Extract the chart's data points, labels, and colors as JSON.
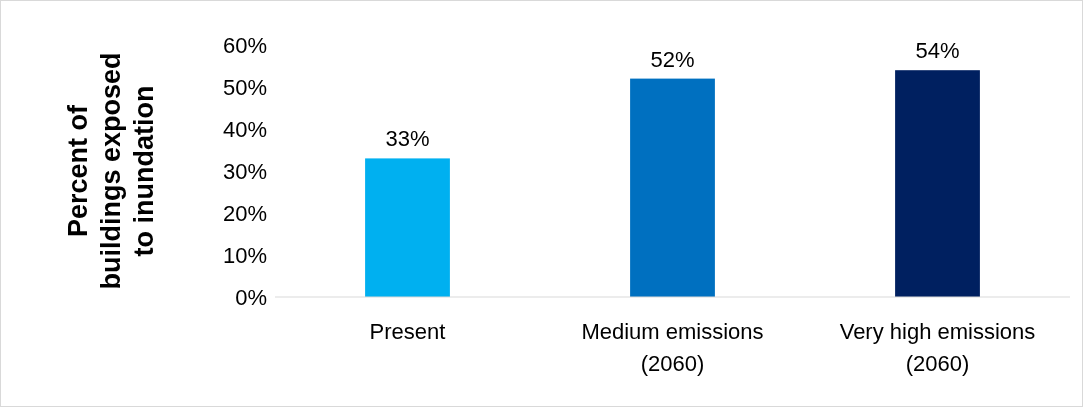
{
  "chart_data": {
    "type": "bar",
    "ylabel": "Percent of buildings exposed to inundation",
    "categories": [
      "Present",
      "Medium emissions (2060)",
      "Very high emissions (2060)"
    ],
    "values": [
      33,
      52,
      54
    ],
    "colors": [
      "#00b0f0",
      "#0070c0",
      "#002060"
    ],
    "value_labels": [
      "33%",
      "52%",
      "54%"
    ],
    "ylim": [
      0,
      60
    ],
    "yticks": [
      {
        "value": 0,
        "label": "0%"
      },
      {
        "value": 10,
        "label": "10%"
      },
      {
        "value": 20,
        "label": "20%"
      },
      {
        "value": 30,
        "label": "30%"
      },
      {
        "value": 40,
        "label": "40%"
      },
      {
        "value": 50,
        "label": "50%"
      },
      {
        "value": 60,
        "label": "60%"
      }
    ],
    "grid": false
  }
}
